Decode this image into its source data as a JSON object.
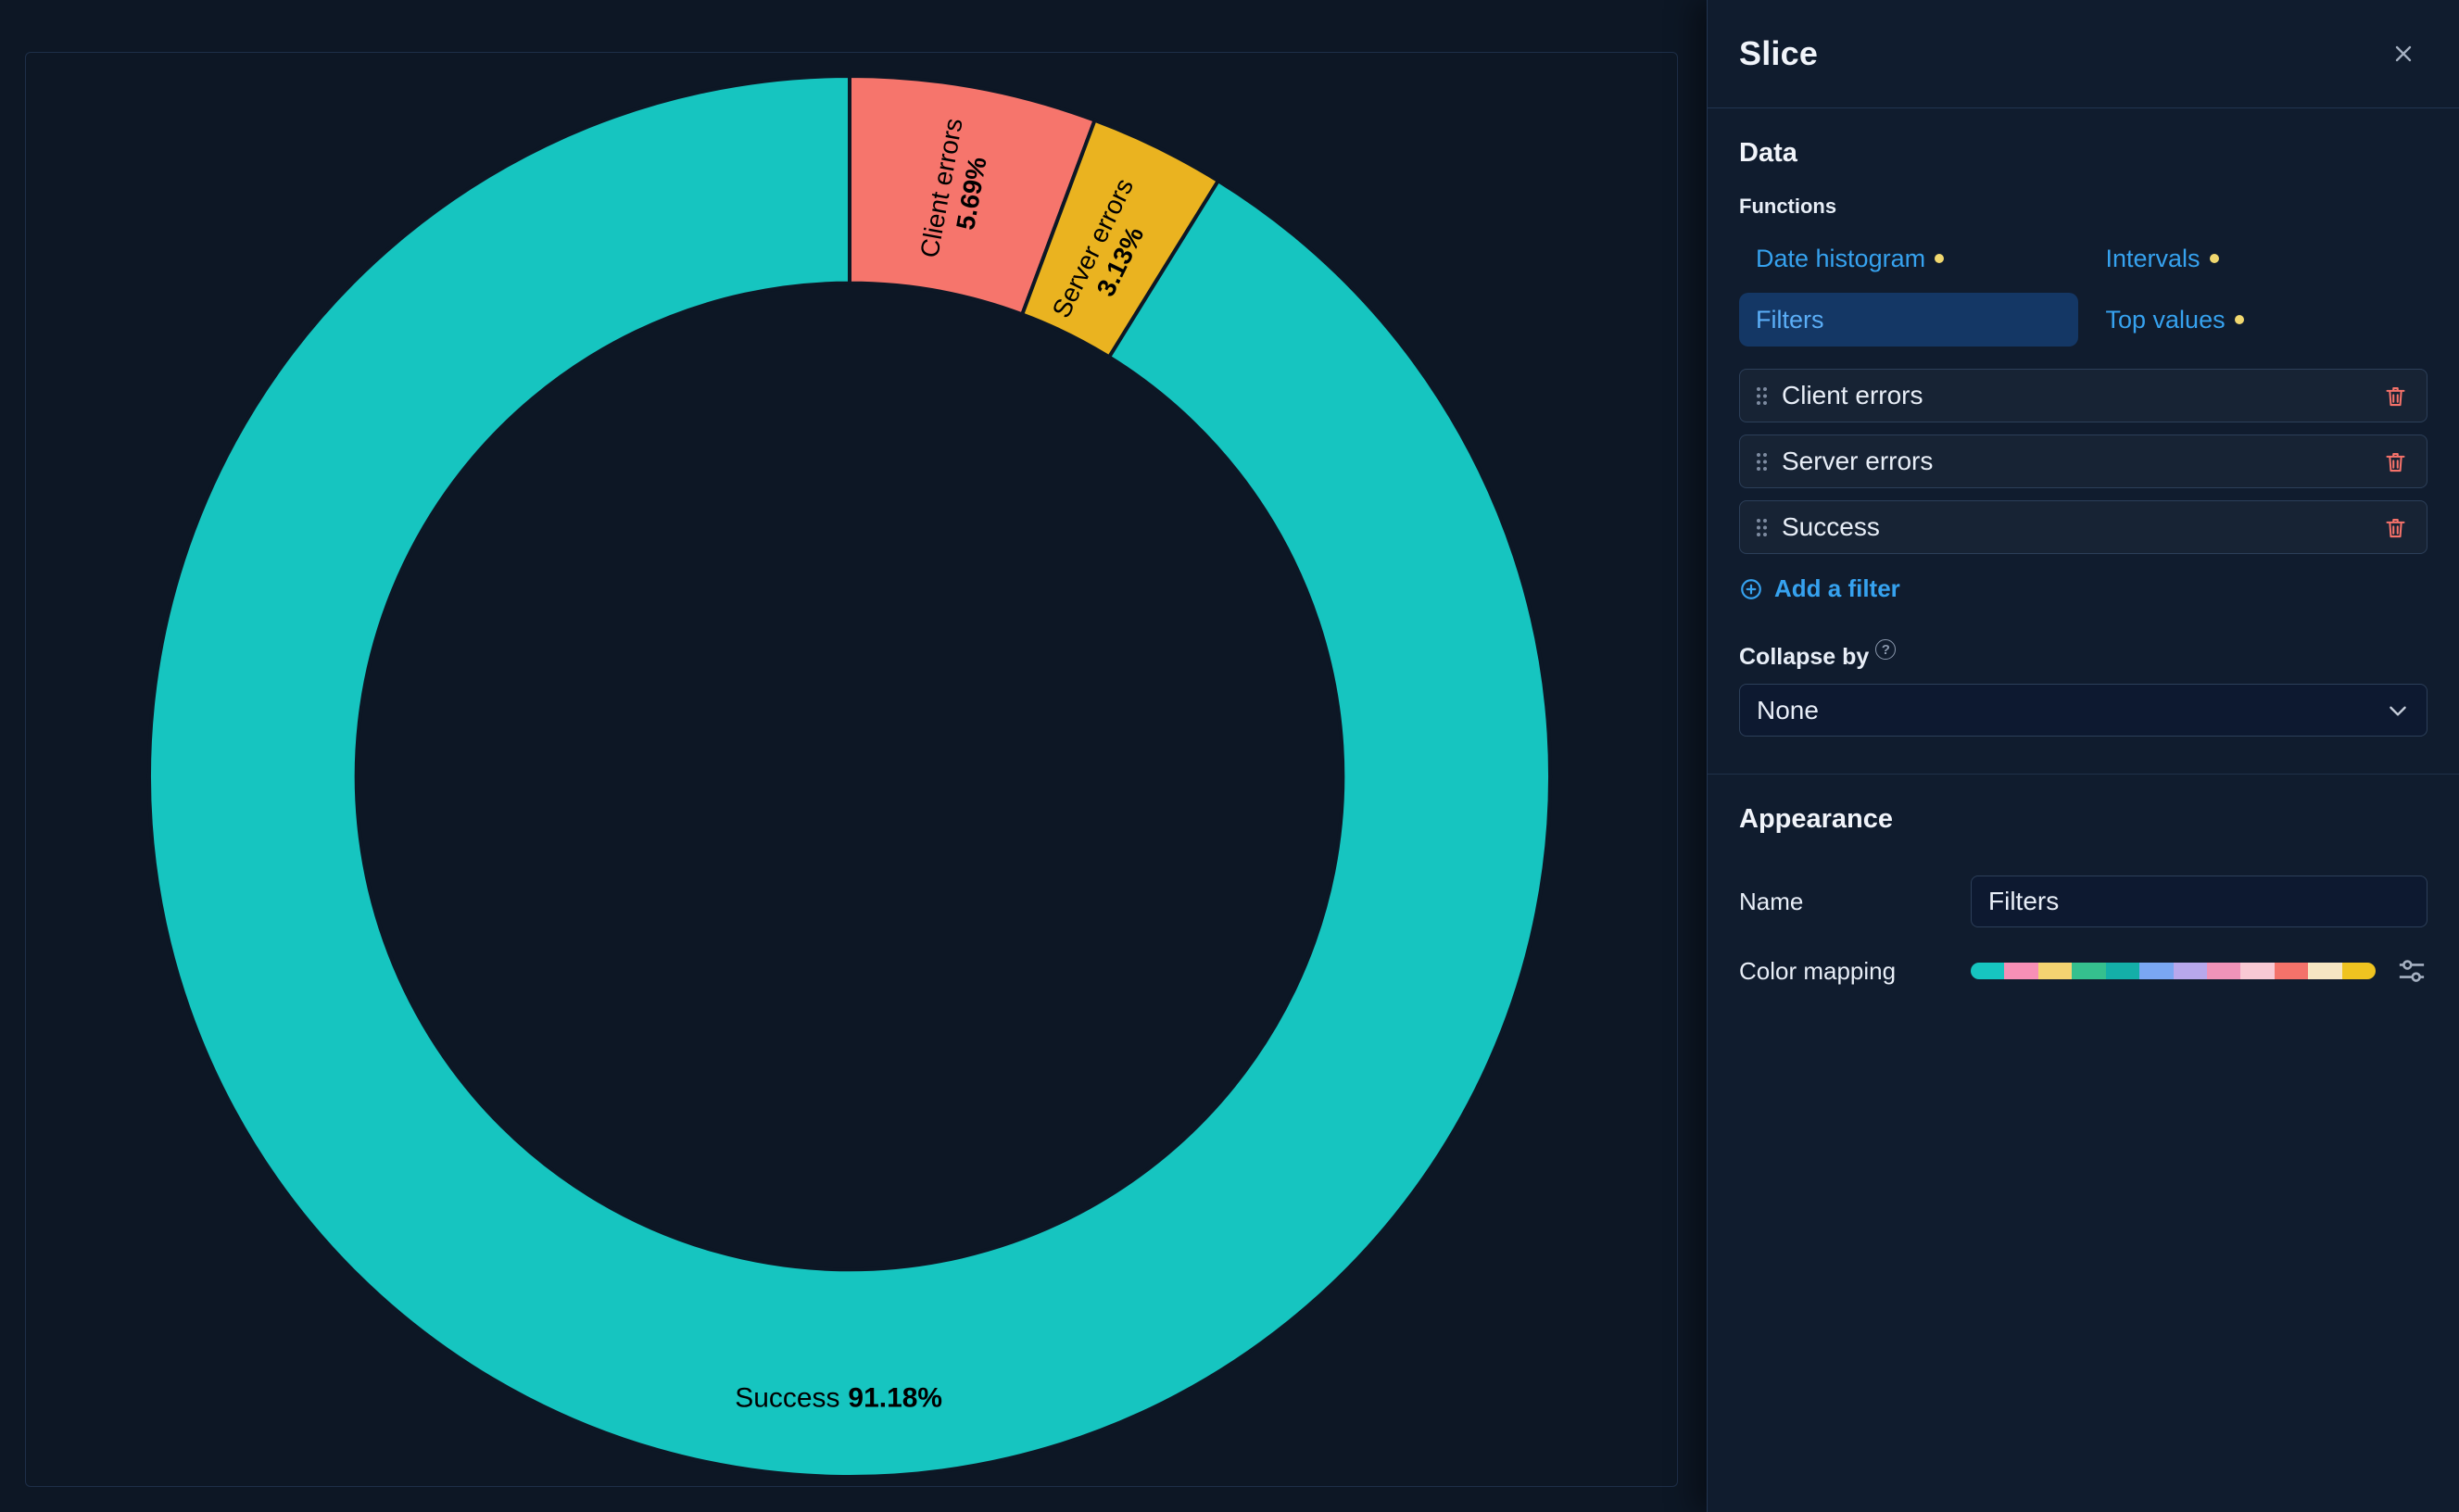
{
  "chart_data": {
    "type": "pie",
    "subtype": "donut",
    "title": "Filters",
    "legend": "off",
    "label_color": "#000000",
    "stroke_color": "#0D1725",
    "slices": [
      {
        "label": "Client errors",
        "value": 5.69,
        "pct_label": "5.69%",
        "color": "#F6756C",
        "label_radius_frac": 0.85
      },
      {
        "label": "Server errors",
        "value": 3.13,
        "pct_label": "3.13%",
        "color": "#EAB320",
        "label_radius_frac": 0.83
      },
      {
        "label": "Success",
        "value": 91.18,
        "pct_label": "91.18%",
        "color": "#16C5C0",
        "label_radius_frac": 0.9,
        "label_angle_override": 181,
        "label_horizontal": true
      }
    ]
  },
  "flyout": {
    "title": "Slice",
    "data_section": {
      "heading": "Data",
      "functions_label": "Functions",
      "functions": [
        {
          "label": "Date histogram",
          "dot": true,
          "selected": false
        },
        {
          "label": "Intervals",
          "dot": true,
          "selected": false
        },
        {
          "label": "Filters",
          "dot": false,
          "selected": true
        },
        {
          "label": "Top values",
          "dot": true,
          "selected": false
        }
      ],
      "filters": [
        "Client errors",
        "Server errors",
        "Success"
      ],
      "add_filter_label": "Add a filter",
      "collapse_label": "Collapse by",
      "collapse_value": "None"
    },
    "appearance_section": {
      "heading": "Appearance",
      "name_label": "Name",
      "name_value": "Filters",
      "color_mapping_label": "Color mapping",
      "color_swatches": [
        "#16C5C0",
        "#F78FB6",
        "#F3D371",
        "#35C08E",
        "#14AFA8",
        "#7AA7F2",
        "#B8A8EC",
        "#F093B9",
        "#F8C9D4",
        "#F4726A",
        "#F6E6C3",
        "#EFC320"
      ]
    }
  },
  "icons": {
    "close": "x-cross",
    "drag": "six-dots",
    "trash": "trash-can",
    "add": "plus-in-circle",
    "help": "question-in-circle",
    "chevron": "chevron-down",
    "controls": "horizontal-sliders",
    "unsaved_dot": "yellow-dot"
  },
  "colors": {
    "background": "#0D1725",
    "flyout_background": "#101C2E",
    "accent_blue": "#36A2EF",
    "selected_pill": "#143765",
    "dot_yellow": "#F1D86F",
    "danger_red": "#F6726A",
    "teal": "#16C5C0",
    "salmon": "#F6756C",
    "amber": "#EAB320"
  }
}
